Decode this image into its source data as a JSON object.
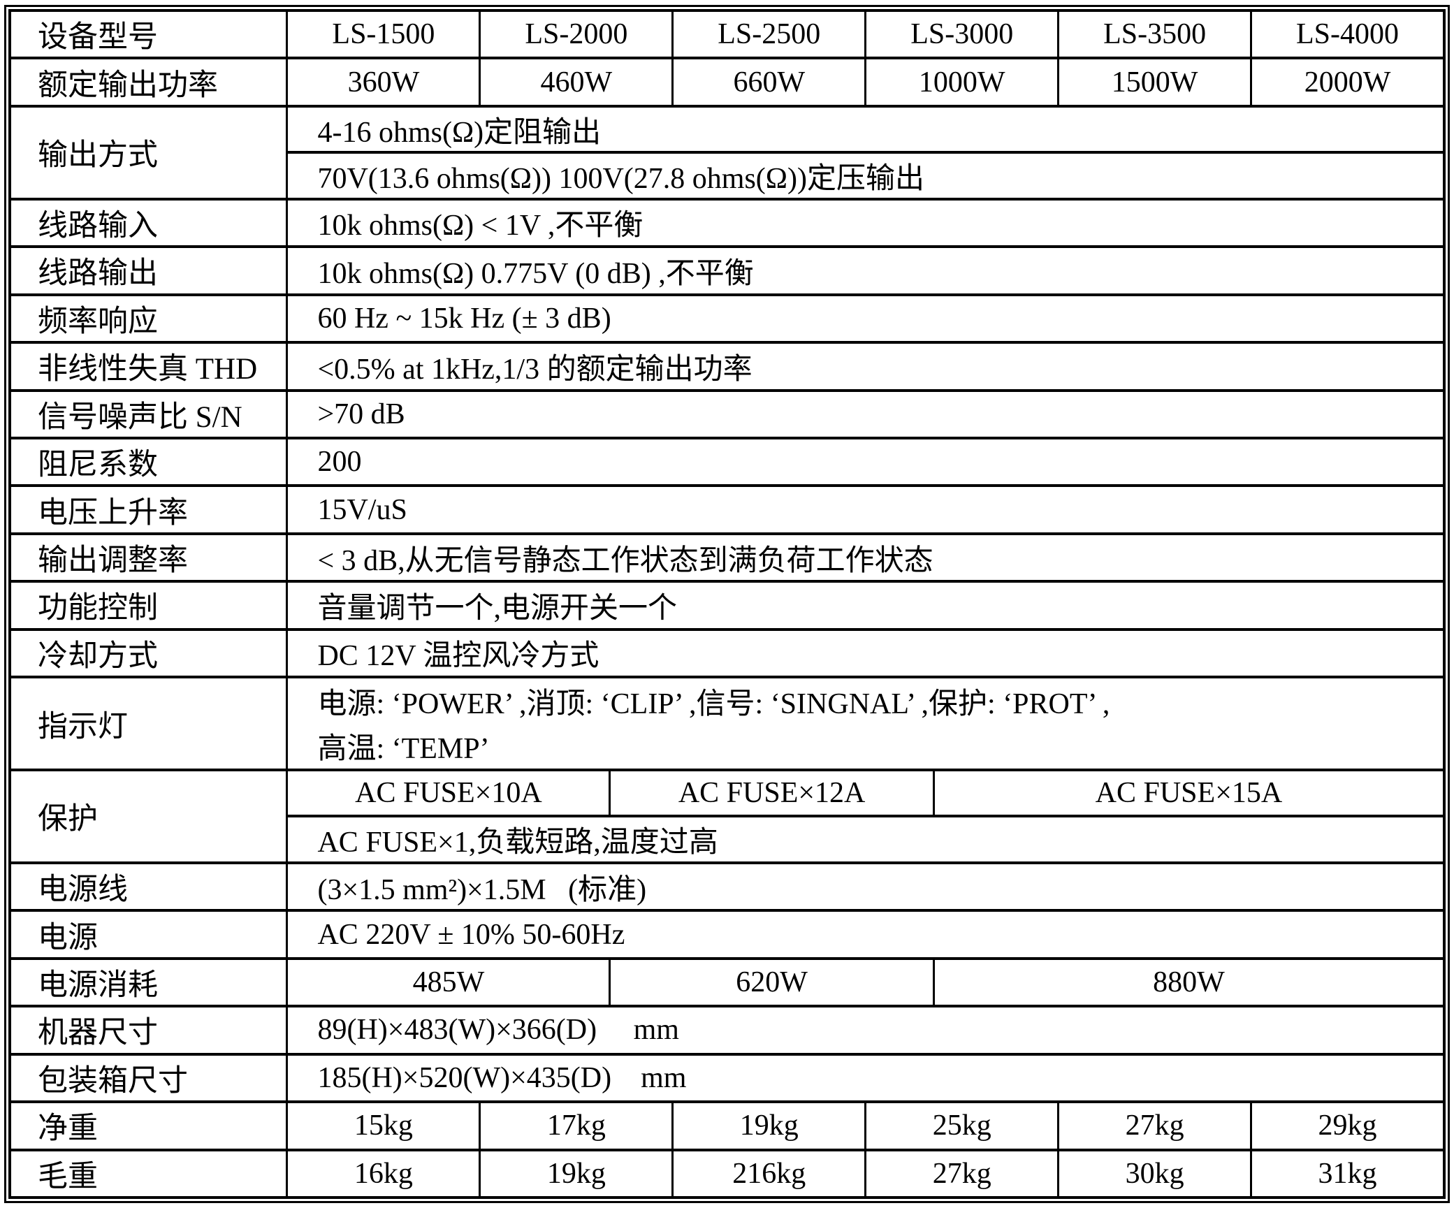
{
  "table": {
    "header": {
      "label": "设备型号",
      "models": [
        "LS-1500",
        "LS-2000",
        "LS-2500",
        "LS-3000",
        "LS-3500",
        "LS-4000"
      ]
    },
    "rated_power": {
      "label": "额定输出功率",
      "values": [
        "360W",
        "460W",
        "660W",
        "1000W",
        "1500W",
        "2000W"
      ]
    },
    "output_mode": {
      "label": "输出方式",
      "line1": "4-16 ohms(Ω)定阻输出",
      "line2": "70V(13.6 ohms(Ω)) 100V(27.8 ohms(Ω))定压输出"
    },
    "line_input": {
      "label": "线路输入",
      "value": "10k ohms(Ω) < 1V ,不平衡"
    },
    "line_output": {
      "label": "线路输出",
      "value": "10k ohms(Ω) 0.775V (0 dB) ,不平衡"
    },
    "freq_response": {
      "label": "频率响应",
      "value": "60 Hz ~ 15k Hz (± 3 dB)"
    },
    "thd": {
      "label": "非线性失真 THD",
      "value": "<0.5% at 1kHz,1/3 的额定输出功率"
    },
    "snr": {
      "label": "信号噪声比 S/N",
      "value": ">70 dB"
    },
    "damping": {
      "label": "阻尼系数",
      "value": "200"
    },
    "slew_rate": {
      "label": "电压上升率",
      "value": "15V/uS"
    },
    "output_regulation": {
      "label": "输出调整率",
      "value": "< 3 dB,从无信号静态工作状态到满负荷工作状态"
    },
    "controls": {
      "label": "功能控制",
      "value": "音量调节一个,电源开关一个"
    },
    "cooling": {
      "label": "冷却方式",
      "value": "DC 12V 温控风冷方式"
    },
    "indicators": {
      "label": "指示灯",
      "line1": "电源: ‘POWER’ ,消顶: ‘CLIP’ ,信号: ‘SINGNAL’ ,保护: ‘PROT’ ,",
      "line2": "高温: ‘TEMP’"
    },
    "protection": {
      "label": "保护",
      "fuses": [
        "AC FUSE×10A",
        "AC FUSE×12A",
        "AC FUSE×15A"
      ],
      "line2": "AC FUSE×1,负载短路,温度过高"
    },
    "power_cord": {
      "label": "电源线",
      "value": "(3×1.5 mm²)×1.5M   (标准)"
    },
    "power_supply": {
      "label": "电源",
      "value": "AC 220V ± 10% 50-60Hz"
    },
    "power_consumption": {
      "label": "电源消耗",
      "values": [
        "485W",
        "620W",
        "880W"
      ]
    },
    "unit_dimensions": {
      "label": "机器尺寸",
      "value": "89(H)×483(W)×366(D)     mm"
    },
    "carton_dimensions": {
      "label": "包装箱尺寸",
      "value": "185(H)×520(W)×435(D)    mm"
    },
    "net_weight": {
      "label": "净重",
      "values": [
        "15kg",
        "17kg",
        "19kg",
        "25kg",
        "27kg",
        "29kg"
      ]
    },
    "gross_weight": {
      "label": "毛重",
      "values": [
        "16kg",
        "19kg",
        "216kg",
        "27kg",
        "30kg",
        "31kg"
      ]
    }
  }
}
